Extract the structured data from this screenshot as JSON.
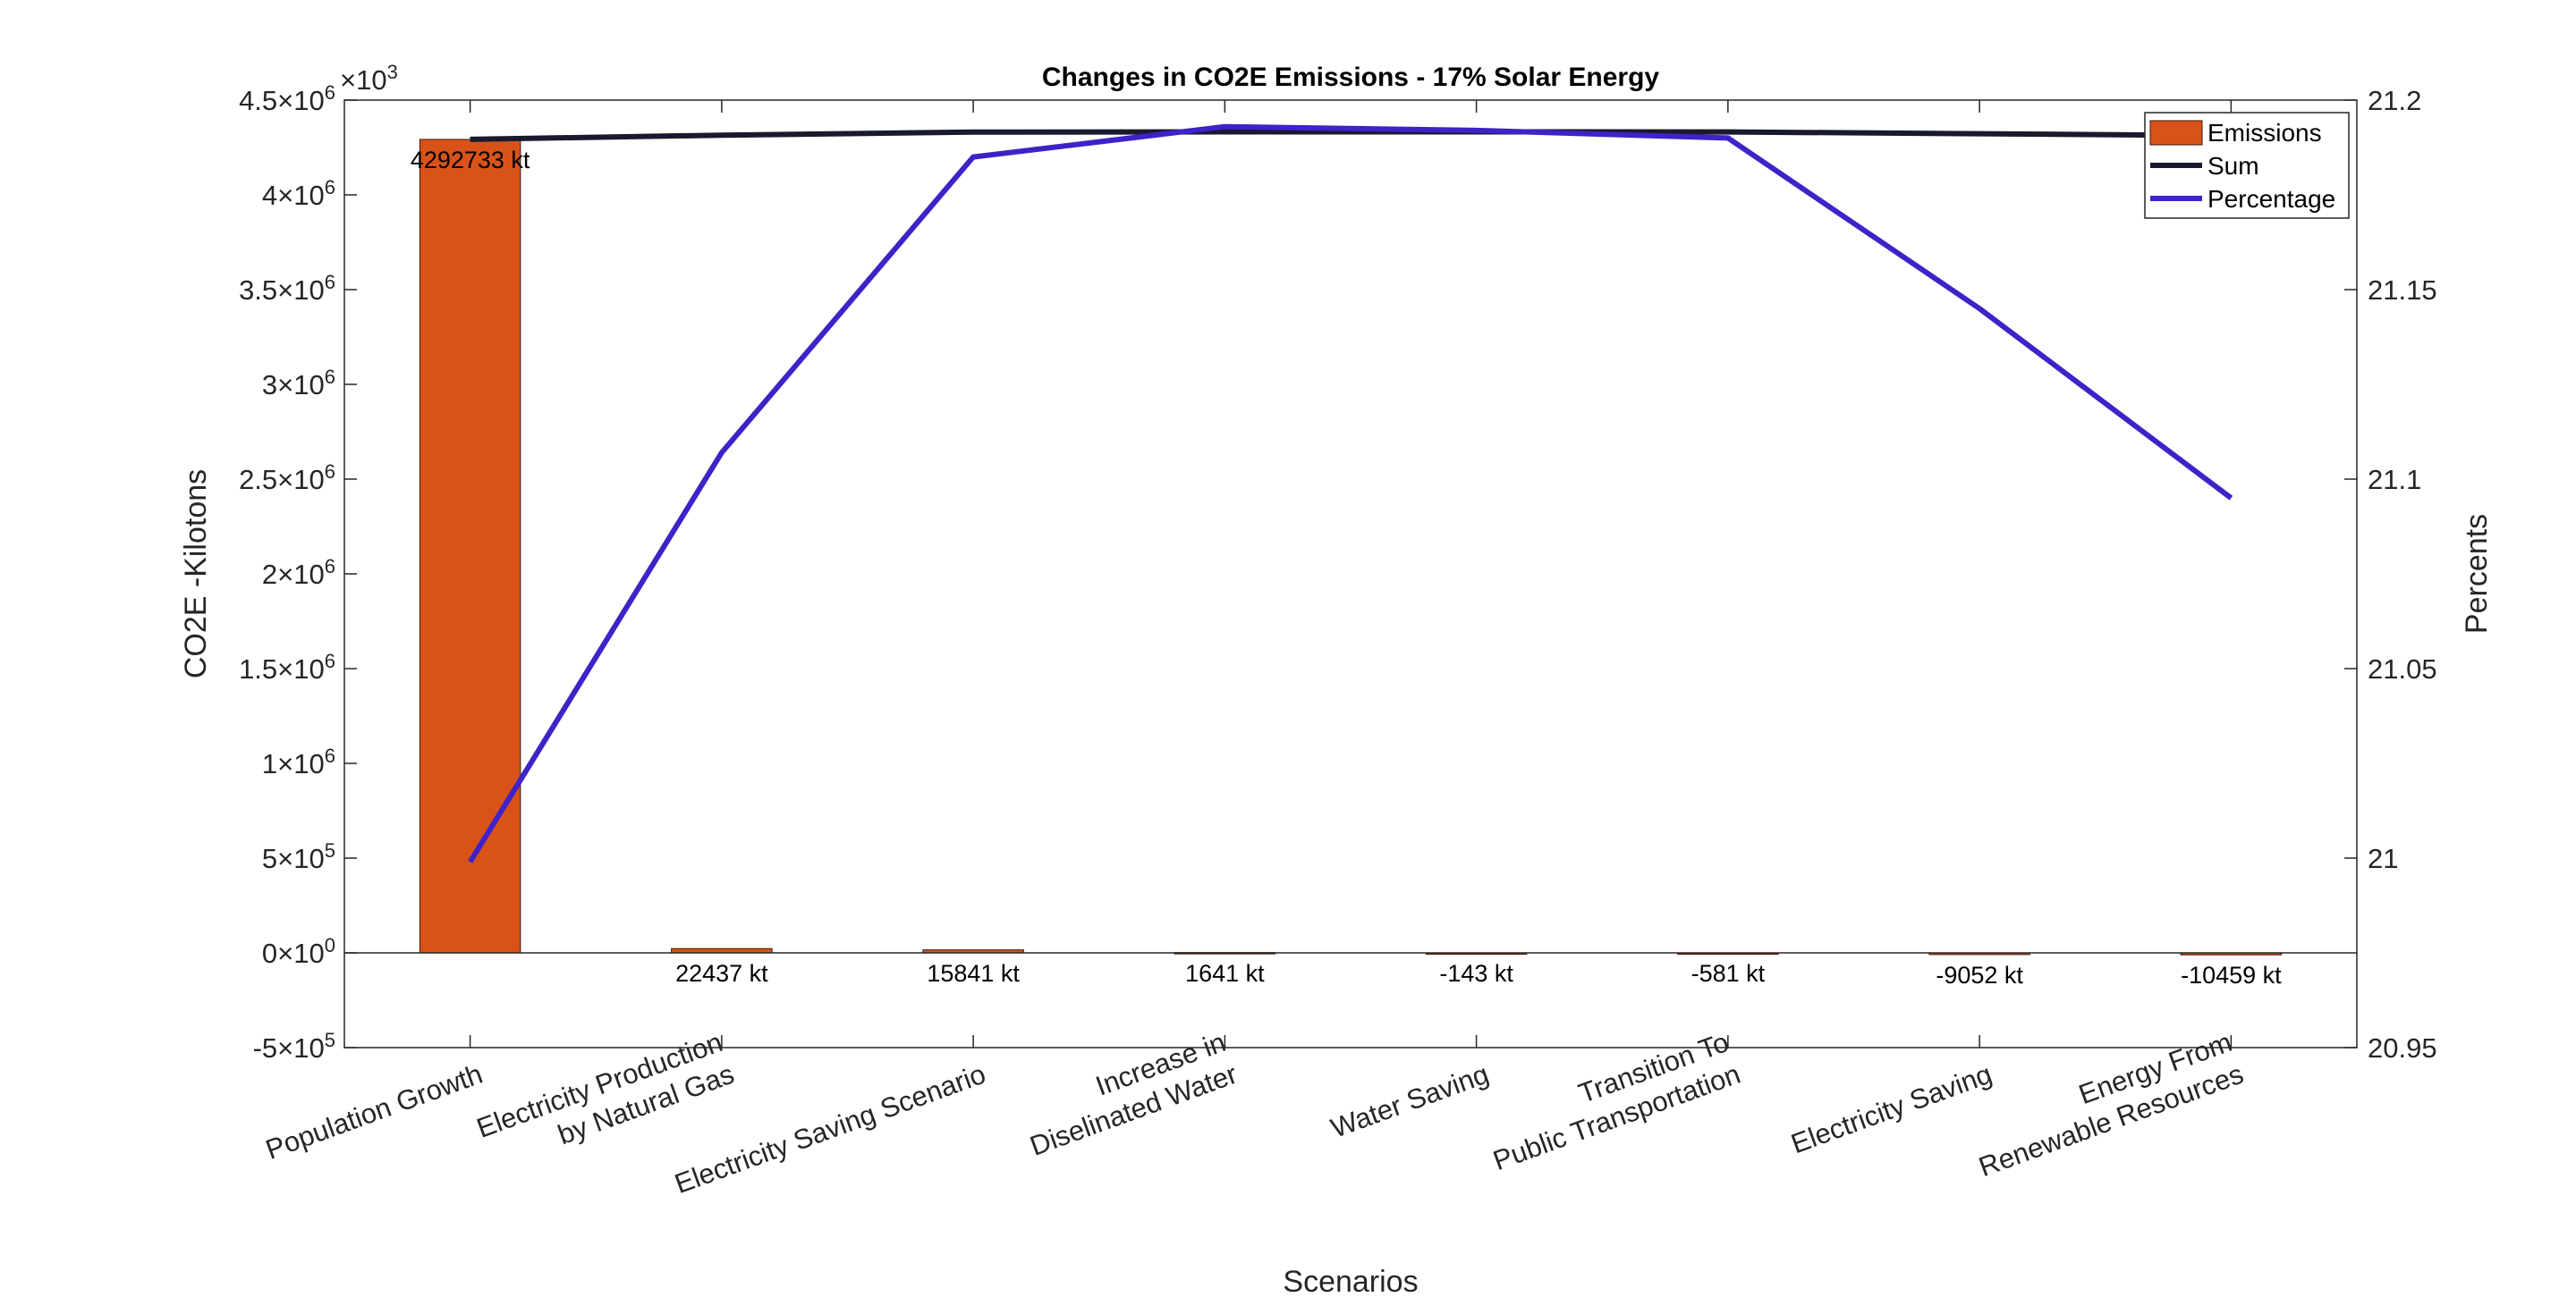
{
  "chart_data": {
    "type": "bar",
    "title": "Changes in CO2E Emissions - 17% Solar Energy",
    "xlabel": "Scenarios",
    "ylabel": "CO2E -Kilotons",
    "y2label": "Percents",
    "y_multiplier_label": "×10^3",
    "ylim": [
      -500000,
      4500000
    ],
    "y2lim": [
      20.95,
      21.2
    ],
    "yticks": [
      -500000,
      0,
      500000,
      1000000,
      1500000,
      2000000,
      2500000,
      3000000,
      3500000,
      4000000,
      4500000
    ],
    "ytick_labels": [
      {
        "mant": "-5",
        "exp": "5"
      },
      {
        "mant": "0",
        "exp": "0"
      },
      {
        "mant": "5",
        "exp": "5"
      },
      {
        "mant": "1",
        "exp": "6"
      },
      {
        "mant": "1.5",
        "exp": "6"
      },
      {
        "mant": "2",
        "exp": "6"
      },
      {
        "mant": "2.5",
        "exp": "6"
      },
      {
        "mant": "3",
        "exp": "6"
      },
      {
        "mant": "3.5",
        "exp": "6"
      },
      {
        "mant": "4",
        "exp": "6"
      },
      {
        "mant": "4.5",
        "exp": "6"
      }
    ],
    "y2ticks": [
      20.95,
      21,
      21.05,
      21.1,
      21.15,
      21.2
    ],
    "y2tick_labels": [
      "20.95",
      "21",
      "21.05",
      "21.1",
      "21.15",
      "21.2"
    ],
    "categories": [
      [
        "Population Growth"
      ],
      [
        "Electricity Production",
        "by Natural Gas"
      ],
      [
        "Electricity Saving Scenario"
      ],
      [
        "Increase in",
        "Diselinated Water"
      ],
      [
        "Water Saving"
      ],
      [
        "Transition To",
        "Public Transportation"
      ],
      [
        "Electricity Saving"
      ],
      [
        "Energy From",
        "Renewable Resources"
      ]
    ],
    "series": [
      {
        "name": "Emissions",
        "kind": "bar",
        "axis": "left",
        "color": "#D95319",
        "values": [
          4292733,
          22437,
          15841,
          1641,
          -143,
          -581,
          -9052,
          -10459
        ]
      },
      {
        "name": "Sum",
        "kind": "line",
        "axis": "left",
        "color": "#1a1a2e",
        "values": [
          4292733,
          4315170,
          4331011,
          4332652,
          4332509,
          4331928,
          4322876,
          4312417
        ]
      },
      {
        "name": "Percentage",
        "kind": "line",
        "axis": "right",
        "color": "#3f22c8",
        "values": [
          20.999,
          21.107,
          21.185,
          21.193,
          21.192,
          21.19,
          21.145,
          21.095
        ]
      }
    ],
    "data_labels": [
      "4292733 kt",
      "22437 kt",
      "15841 kt",
      "1641 kt",
      "-143 kt",
      "-581 kt",
      "-9052 kt",
      "-10459 kt"
    ],
    "legend_placement": "top-right",
    "grid": false
  }
}
